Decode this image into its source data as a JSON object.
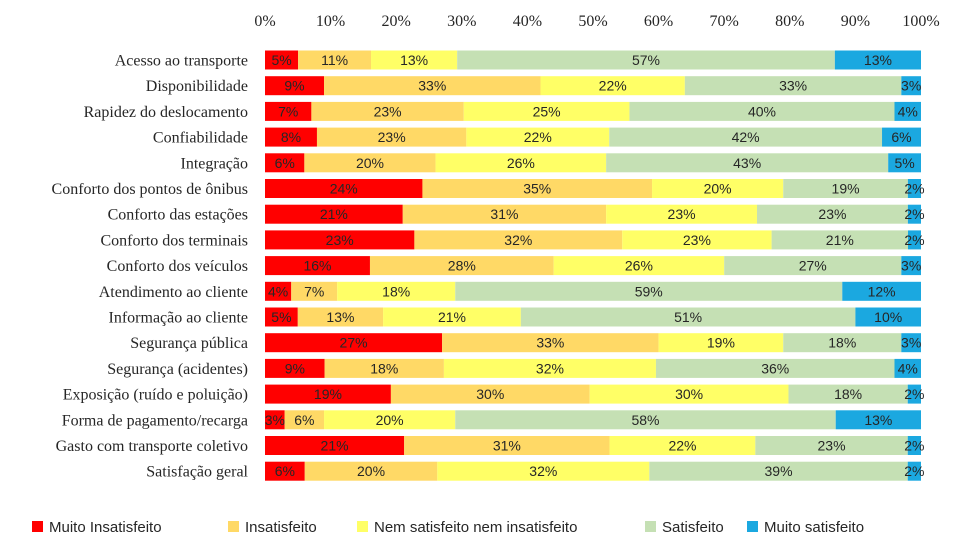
{
  "chart_data": {
    "type": "bar",
    "orientation": "horizontal",
    "stacked": "percent",
    "xlim": [
      0,
      100
    ],
    "x_ticks": [
      "0%",
      "10%",
      "20%",
      "30%",
      "40%",
      "50%",
      "60%",
      "70%",
      "80%",
      "90%",
      "100%"
    ],
    "x_axis_position": "top",
    "grid": false,
    "legend_position": "bottom",
    "categories": [
      "Acesso ao transporte",
      "Disponibilidade",
      "Rapidez do deslocamento",
      "Confiabilidade",
      "Integração",
      "Conforto dos pontos de ônibus",
      "Conforto das estações",
      "Conforto dos terminais",
      "Conforto dos veículos",
      "Atendimento ao cliente",
      "Informação ao cliente",
      "Segurança pública",
      "Segurança (acidentes)",
      "Exposição (ruído e poluição)",
      "Forma de pagamento/recarga",
      "Gasto com transporte coletivo",
      "Satisfação geral"
    ],
    "series": [
      {
        "name": "Muito Insatisfeito",
        "color": "#ff0000",
        "values": [
          5,
          9,
          7,
          8,
          6,
          24,
          21,
          23,
          16,
          4,
          5,
          27,
          9,
          19,
          3,
          21,
          6
        ],
        "labels": [
          "5%",
          "9%",
          "7%",
          "8%",
          "6%",
          "24%",
          "21%",
          "23%",
          "16%",
          "4%",
          "5%",
          "27%",
          "9%",
          "19%",
          "3%",
          "21%",
          "6%"
        ]
      },
      {
        "name": "Insatisfeito",
        "color": "#ffd966",
        "values": [
          11,
          33,
          23,
          23,
          20,
          35,
          31,
          32,
          28,
          7,
          13,
          33,
          18,
          30,
          6,
          31,
          20
        ],
        "labels": [
          "11%",
          "33%",
          "23%",
          "23%",
          "20%",
          "35%",
          "31%",
          "32%",
          "28%",
          "7%",
          "13%",
          "33%",
          "18%",
          "30%",
          "6%",
          "31%",
          "20%"
        ]
      },
      {
        "name": "Nem satisfeito nem insatisfeito",
        "color": "#ffff66",
        "values": [
          13,
          22,
          25,
          22,
          26,
          20,
          23,
          23,
          26,
          18,
          21,
          19,
          32,
          30,
          20,
          22,
          32
        ],
        "labels": [
          "13%",
          "22%",
          "25%",
          "22%",
          "26%",
          "20%",
          "23%",
          "23%",
          "26%",
          "18%",
          "21%",
          "19%",
          "32%",
          "30%",
          "20%",
          "22%",
          "32%"
        ]
      },
      {
        "name": "Satisfeito",
        "color": "#c5e0b4",
        "values": [
          57,
          33,
          40,
          42,
          43,
          19,
          23,
          21,
          27,
          59,
          51,
          18,
          36,
          18,
          58,
          23,
          39
        ],
        "labels": [
          "57%",
          "33%",
          "40%",
          "42%",
          "43%",
          "19%",
          "23%",
          "21%",
          "27%",
          "59%",
          "51%",
          "18%",
          "36%",
          "18%",
          "58%",
          "23%",
          "39%"
        ]
      },
      {
        "name": "Muito satisfeito",
        "color": "#1ba8e0",
        "values": [
          13,
          3,
          4,
          6,
          5,
          2,
          2,
          2,
          3,
          12,
          10,
          3,
          4,
          2,
          13,
          2,
          2
        ],
        "labels": [
          "13%",
          "3%",
          "4%",
          "6%",
          "5%",
          "2%",
          "2%",
          "2%",
          "3%",
          "12%",
          "10%",
          "3%",
          "4%",
          "2%",
          "13%",
          "2%",
          "2%"
        ]
      }
    ]
  }
}
